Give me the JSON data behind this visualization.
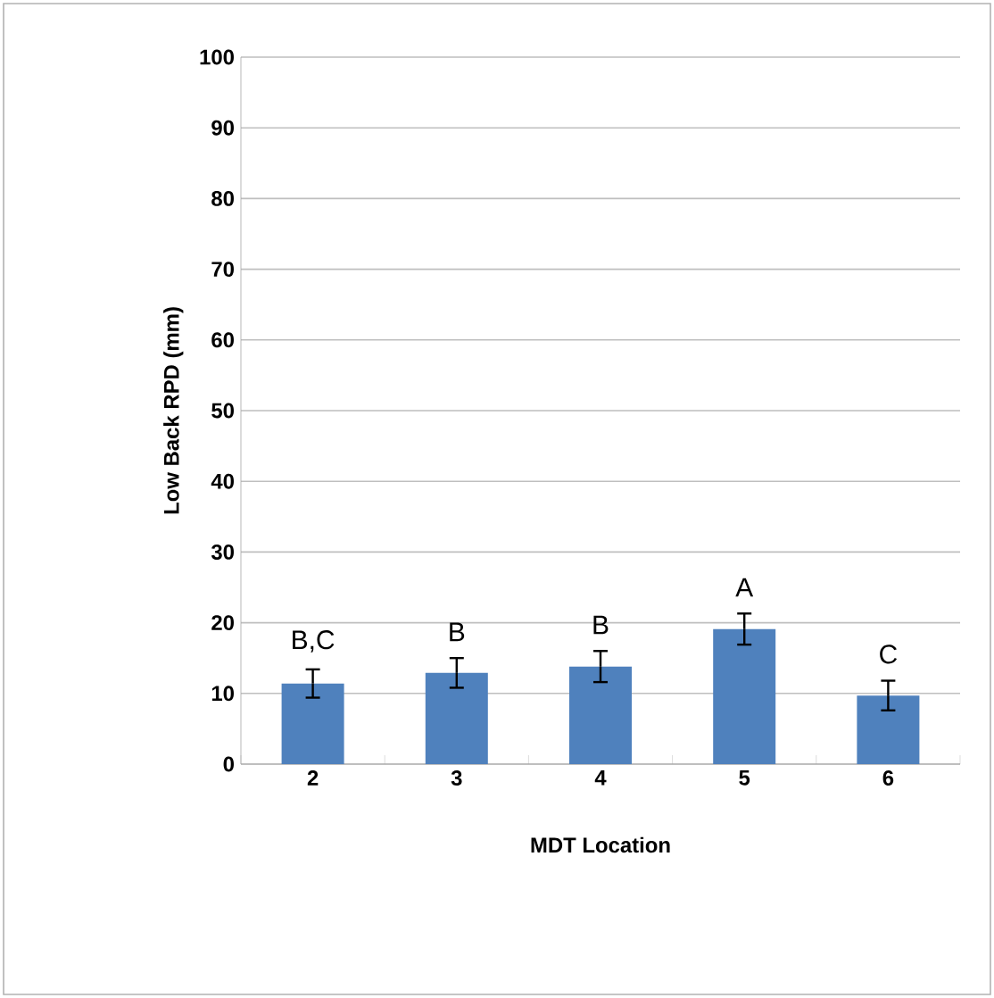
{
  "chart_data": {
    "type": "bar",
    "xlabel": "MDT Location",
    "ylabel": "Low Back  RPD (mm)",
    "categories": [
      "2",
      "3",
      "4",
      "5",
      "6"
    ],
    "values": [
      11.4,
      12.9,
      13.8,
      19.1,
      9.7
    ],
    "errors": [
      2.0,
      2.1,
      2.2,
      2.2,
      2.1
    ],
    "color": "#4f81bd",
    "ylim": [
      0,
      100
    ],
    "yticks": [
      0,
      10,
      20,
      30,
      40,
      50,
      60,
      70,
      80,
      90,
      100
    ],
    "grid": "y",
    "annotations": [
      "B,C",
      "B",
      "B",
      "A",
      "C"
    ]
  }
}
